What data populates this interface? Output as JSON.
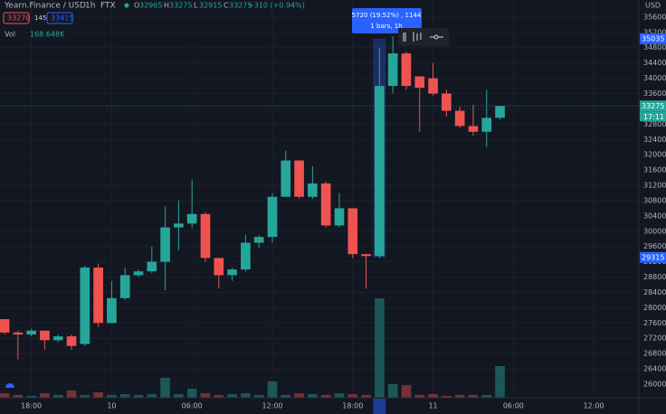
{
  "header": {
    "symbol": "Yearn.Finance / USD",
    "interval": "1h",
    "exchange": "FTX",
    "ohlc": [
      {
        "key": "O",
        "value": 32965
      },
      {
        "key": "H",
        "value": 33275
      },
      {
        "key": "L",
        "value": 32915
      },
      {
        "key": "C",
        "value": 33275
      }
    ],
    "change": "+310 (+0.94%)",
    "bid": 33270,
    "spread": 145,
    "ask": 33415,
    "volume_key": "Vol",
    "volume_text": "168.648K"
  },
  "chart_data": {
    "type": "candlestick",
    "currency": "USD",
    "open": [
      27700,
      27350,
      27300,
      27400,
      27150,
      27250,
      27050,
      29050,
      27600,
      28250,
      28850,
      28950,
      29200,
      30100,
      30200,
      30450,
      29300,
      28850,
      29000,
      29700,
      29850,
      30900,
      31850,
      30900,
      31250,
      30150,
      30600,
      29400,
      29350,
      33800,
      34650,
      34050,
      34000,
      33600,
      33150,
      32750,
      32600,
      32965
    ],
    "high": [
      27700,
      27400,
      27450,
      27400,
      27300,
      27300,
      29100,
      29150,
      28700,
      29050,
      29000,
      29600,
      30650,
      30800,
      31350,
      30500,
      29300,
      29050,
      29900,
      29900,
      31000,
      32100,
      31850,
      31700,
      31300,
      31000,
      30600,
      29400,
      34800,
      35100,
      34700,
      34050,
      34400,
      33700,
      33250,
      33300,
      33700,
      33275
    ],
    "low": [
      27300,
      26650,
      27250,
      26900,
      27100,
      26900,
      27000,
      27500,
      27600,
      28200,
      28800,
      28900,
      28450,
      29500,
      30100,
      29200,
      28500,
      28700,
      28950,
      29550,
      29700,
      30900,
      30850,
      30850,
      30100,
      30100,
      29300,
      28500,
      29300,
      33600,
      33700,
      32600,
      33550,
      33000,
      32700,
      32500,
      32200,
      32915
    ],
    "close": [
      27350,
      27300,
      27400,
      27150,
      27250,
      27000,
      29050,
      27600,
      28250,
      28850,
      28950,
      29200,
      30100,
      30200,
      30450,
      29300,
      28850,
      29000,
      29700,
      29850,
      30900,
      31850,
      30900,
      31250,
      30150,
      30600,
      29400,
      29350,
      33800,
      34650,
      33800,
      33750,
      33600,
      33150,
      32750,
      32600,
      32965,
      33275
    ],
    "volume": [
      24,
      15,
      10,
      24,
      15,
      39,
      15,
      29,
      15,
      19,
      15,
      19,
      106,
      19,
      48,
      24,
      15,
      19,
      24,
      15,
      87,
      15,
      24,
      19,
      15,
      24,
      19,
      15,
      530,
      72,
      67,
      15,
      19,
      10,
      15,
      15,
      15,
      168.648
    ],
    "up_color": "#26a69a",
    "down_color": "#ef5350",
    "ylim": [
      25645,
      36047
    ],
    "vlim": [
      0,
      2120
    ],
    "xlim": [
      -0.34,
      47.37
    ],
    "yticks": [
      26000,
      26400,
      26800,
      27200,
      27600,
      28000,
      28400,
      28800,
      29200,
      29600,
      30000,
      30400,
      30800,
      31200,
      31600,
      32000,
      32400,
      32800,
      33200,
      33600,
      34000,
      34400,
      34800,
      35200,
      35600
    ],
    "xticks": [
      {
        "value": 2,
        "label": "18:00"
      },
      {
        "value": 8,
        "label": "10"
      },
      {
        "value": 14,
        "label": "06:00"
      },
      {
        "value": 20,
        "label": "12:00"
      },
      {
        "value": 26,
        "label": "18:00"
      },
      {
        "value": 32,
        "label": "11"
      },
      {
        "value": 38,
        "label": "06:00"
      },
      {
        "value": 44,
        "label": "12:00"
      }
    ],
    "price_markers": [
      {
        "value": 35035,
        "color": "#2962ff"
      },
      {
        "value": 33275,
        "color": "#26a69a"
      },
      {
        "value": 29315,
        "color": "#2962ff"
      }
    ],
    "countdown": "17:11",
    "selected_index": 28,
    "tooltip": [
      "5720 (19.52%) , 1144",
      "1 bars, 1h"
    ]
  }
}
